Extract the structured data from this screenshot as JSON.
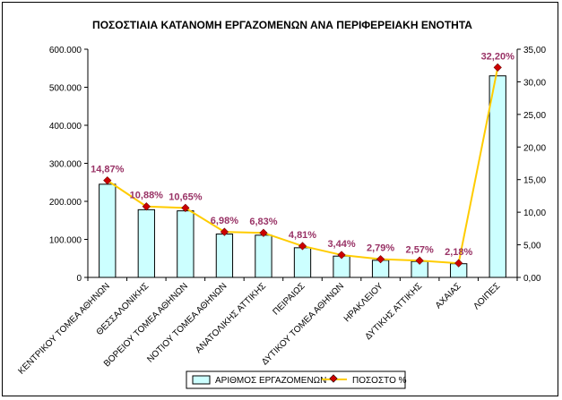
{
  "chart_data": {
    "type": "bar+line",
    "title": "ΠΟΣΟΣΤΙΑΙΑ ΚΑΤΑΝΟΜΗ ΕΡΓΑΖΟΜΕΝΩΝ ΑΝΑ ΠΕΡΙΦΕΡΕΙΑΚΗ ΕΝΟΤΗΤΑ",
    "categories": [
      "ΚΕΝΤΡΙΚΟΥ ΤΟΜΕΑ ΑΘΗΝΩΝ",
      "ΘΕΣΣΑΛΟΝΙΚΗΣ",
      "ΒΟΡΕΙΟΥ ΤΟΜΕΑ ΑΘΗΝΩΝ",
      "ΝΟΤΙΟΥ ΤΟΜΕΑ ΑΘΗΝΩΝ",
      "ΑΝΑΤΟΛΙΚΗΣ ΑΤΤΙΚΗΣ",
      "ΠΕΙΡΑΙΩΣ",
      "ΔΥΤΙΚΟΥ ΤΟΜΕΑ ΑΘΗΝΩΝ",
      "ΗΡΑΚΛΕΙΟΥ",
      "ΔΥΤΙΚΗΣ ΑΤΤΙΚΗΣ",
      "ΑΧΑΙΑΣ",
      "ΛΟΙΠΕΣ"
    ],
    "series": [
      {
        "name": "ΑΡΙΘΜΟΣ ΕΡΓΑΖΟΜΕΝΩΝ",
        "kind": "bar",
        "axis": "left",
        "color": "#ccffff",
        "values": [
          245000,
          178000,
          175000,
          114000,
          111000,
          78000,
          56000,
          45000,
          42000,
          36000,
          530000
        ]
      },
      {
        "name": "ΠΟΣΟΣΤΟ %",
        "kind": "line",
        "axis": "right",
        "color": "#ffcc00",
        "marker_color": "#cc0000",
        "values": [
          14.87,
          10.88,
          10.65,
          6.98,
          6.83,
          4.81,
          3.44,
          2.79,
          2.57,
          2.18,
          32.2
        ],
        "labels": [
          "14,87%",
          "10,88%",
          "10,65%",
          "6,98%",
          "6,83%",
          "4,81%",
          "3,44%",
          "2,79%",
          "2,57%",
          "2,18%",
          "32,20%"
        ],
        "label_color": "#993366"
      }
    ],
    "y_left": {
      "range": [
        0,
        600000
      ],
      "ticks": [
        "0",
        "100.000",
        "200.000",
        "300.000",
        "400.000",
        "500.000",
        "600.000"
      ]
    },
    "y_right": {
      "range": [
        0,
        35
      ],
      "ticks": [
        "0,00",
        "5,00",
        "10,00",
        "15,00",
        "20,00",
        "25,00",
        "30,00",
        "35,00"
      ]
    },
    "grid": false,
    "legend_position": "bottom"
  }
}
